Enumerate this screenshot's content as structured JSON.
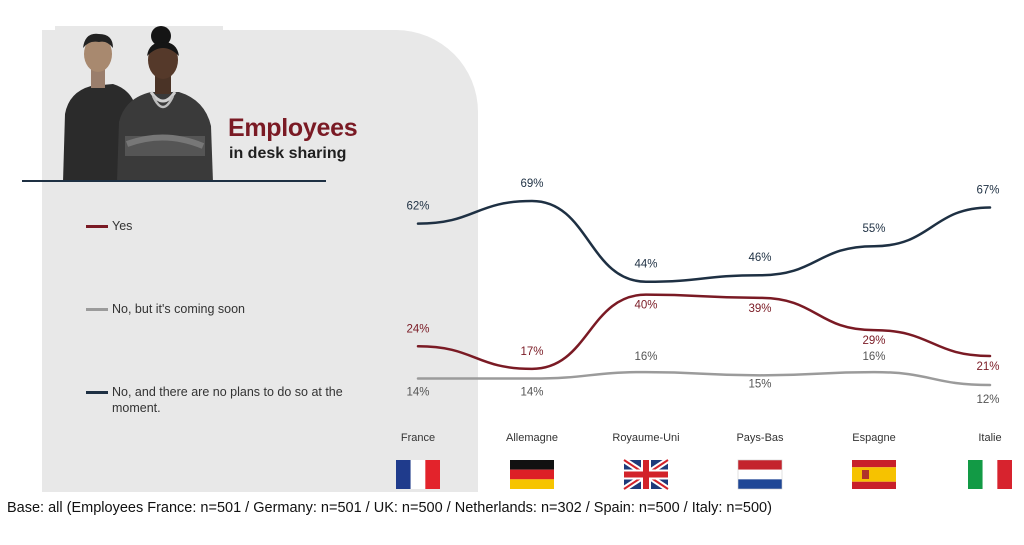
{
  "header": {
    "title": "Employees",
    "subtitle": "in desk sharing"
  },
  "colors": {
    "yes": "#7a1a24",
    "soon": "#9b9b9b",
    "noplan": "#1e3043",
    "panel": "#e8e8e8"
  },
  "legend": [
    {
      "key": "yes",
      "label": "Yes"
    },
    {
      "key": "soon",
      "label": "No, but it's coming soon"
    },
    {
      "key": "noplan",
      "label": "No, and there are no plans to do so at the moment."
    }
  ],
  "chart_data": {
    "type": "line",
    "categories": [
      "France",
      "Allemagne",
      "Royaume-Uni",
      "Pays-Bas",
      "Espagne",
      "Italie"
    ],
    "series": [
      {
        "name": "No, and there are no plans to do so at the moment.",
        "values": [
          62,
          69,
          44,
          46,
          55,
          67
        ],
        "labels": [
          "62%",
          "69%",
          "44%",
          "46%",
          "55%",
          "67%"
        ]
      },
      {
        "name": "Yes",
        "values": [
          24,
          17,
          40,
          39,
          29,
          21
        ],
        "labels": [
          "24%",
          "17%",
          "40%",
          "39%",
          "29%",
          "21%"
        ]
      },
      {
        "name": "No, but it's coming soon",
        "values": [
          14,
          14,
          16,
          15,
          16,
          12
        ],
        "labels": [
          "14%",
          "14%",
          "16%",
          "15%",
          "16%",
          "12%"
        ]
      }
    ],
    "flags": [
      "flag-france-icon",
      "flag-germany-icon",
      "flag-uk-icon",
      "flag-netherlands-icon",
      "flag-spain-icon",
      "flag-italy-icon"
    ]
  },
  "footer": {
    "base": "Base: all (Employees France: n=501 / Germany: n=501 / UK: n=500 / Netherlands: n=302 / Spain: n=500 / Italy: n=500)"
  }
}
